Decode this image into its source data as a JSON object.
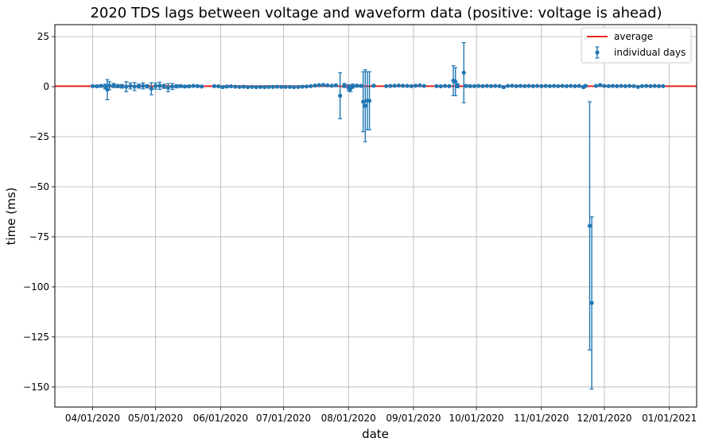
{
  "chart_data": {
    "type": "scatter",
    "title": "2020 TDS lags between voltage and waveform data (positive: voltage is ahead)",
    "xlabel": "date",
    "ylabel": "time (ms)",
    "xlim": [
      "2020-03-14",
      "2021-01-14"
    ],
    "ylim": [
      -160,
      31
    ],
    "x_ticks": [
      {
        "date": "2020-04-01",
        "label": "04/01/2020"
      },
      {
        "date": "2020-05-01",
        "label": "05/01/2020"
      },
      {
        "date": "2020-06-01",
        "label": "06/01/2020"
      },
      {
        "date": "2020-07-01",
        "label": "07/01/2020"
      },
      {
        "date": "2020-08-01",
        "label": "08/01/2020"
      },
      {
        "date": "2020-09-01",
        "label": "09/01/2020"
      },
      {
        "date": "2020-10-01",
        "label": "10/01/2020"
      },
      {
        "date": "2020-11-01",
        "label": "11/01/2020"
      },
      {
        "date": "2020-12-01",
        "label": "12/01/2020"
      },
      {
        "date": "2021-01-01",
        "label": "01/01/2021"
      }
    ],
    "y_ticks": [
      25,
      0,
      -25,
      -50,
      -75,
      -100,
      -125,
      -150
    ],
    "grid": true,
    "legend_position": "top-right",
    "colors": {
      "average": "#e8261e",
      "series": "#1f77b4",
      "grid": "#b0b0b0"
    },
    "average": {
      "name": "average",
      "y": 0.3
    },
    "series": [
      {
        "name": "individual days",
        "points": [
          {
            "x": "2020-04-01",
            "y": 0.3,
            "err": 0.4
          },
          {
            "x": "2020-04-03",
            "y": 0.2,
            "err": 0.5
          },
          {
            "x": "2020-04-05",
            "y": 0.4,
            "err": 0.6
          },
          {
            "x": "2020-04-07",
            "y": 0.1,
            "err": 1.2
          },
          {
            "x": "2020-04-08",
            "y": -1.5,
            "err": 5.0
          },
          {
            "x": "2020-04-09",
            "y": 0.5,
            "err": 2.0
          },
          {
            "x": "2020-04-11",
            "y": 0.6,
            "err": 1.0
          },
          {
            "x": "2020-04-13",
            "y": 0.3,
            "err": 0.8
          },
          {
            "x": "2020-04-15",
            "y": 0.2,
            "err": 0.9
          },
          {
            "x": "2020-04-17",
            "y": 0.0,
            "err": 2.5
          },
          {
            "x": "2020-04-19",
            "y": 0.4,
            "err": 1.5
          },
          {
            "x": "2020-04-21",
            "y": 0.1,
            "err": 2.0
          },
          {
            "x": "2020-04-23",
            "y": 0.3,
            "err": 1.0
          },
          {
            "x": "2020-04-25",
            "y": 0.4,
            "err": 1.5
          },
          {
            "x": "2020-04-27",
            "y": 0.2,
            "err": 0.8
          },
          {
            "x": "2020-04-29",
            "y": -1.0,
            "err": 3.0
          },
          {
            "x": "2020-05-01",
            "y": 0.3,
            "err": 1.5
          },
          {
            "x": "2020-05-03",
            "y": 0.5,
            "err": 1.8
          },
          {
            "x": "2020-05-05",
            "y": 0.2,
            "err": 1.0
          },
          {
            "x": "2020-05-07",
            "y": -0.5,
            "err": 2.0
          },
          {
            "x": "2020-05-09",
            "y": 0.1,
            "err": 1.5
          },
          {
            "x": "2020-05-11",
            "y": 0.2,
            "err": 0.8
          },
          {
            "x": "2020-05-13",
            "y": 0.3,
            "err": 0.6
          },
          {
            "x": "2020-05-15",
            "y": 0.1,
            "err": 0.5
          },
          {
            "x": "2020-05-17",
            "y": 0.2,
            "err": 0.5
          },
          {
            "x": "2020-05-19",
            "y": 0.4,
            "err": 0.4
          },
          {
            "x": "2020-05-21",
            "y": 0.3,
            "err": 0.5
          },
          {
            "x": "2020-05-23",
            "y": 0.1,
            "err": 0.4
          },
          {
            "x": "2020-05-29",
            "y": 0.3,
            "err": 0.4
          },
          {
            "x": "2020-05-31",
            "y": 0.2,
            "err": 0.4
          },
          {
            "x": "2020-06-02",
            "y": -0.2,
            "err": 0.5
          },
          {
            "x": "2020-06-04",
            "y": 0.1,
            "err": 0.5
          },
          {
            "x": "2020-06-06",
            "y": 0.2,
            "err": 0.4
          },
          {
            "x": "2020-06-08",
            "y": 0.0,
            "err": 0.4
          },
          {
            "x": "2020-06-10",
            "y": -0.1,
            "err": 0.3
          },
          {
            "x": "2020-06-12",
            "y": 0.0,
            "err": 0.3
          },
          {
            "x": "2020-06-14",
            "y": -0.2,
            "err": 0.3
          },
          {
            "x": "2020-06-16",
            "y": -0.1,
            "err": 0.3
          },
          {
            "x": "2020-06-18",
            "y": -0.2,
            "err": 0.3
          },
          {
            "x": "2020-06-20",
            "y": -0.1,
            "err": 0.3
          },
          {
            "x": "2020-06-22",
            "y": -0.2,
            "err": 0.3
          },
          {
            "x": "2020-06-24",
            "y": -0.1,
            "err": 0.3
          },
          {
            "x": "2020-06-26",
            "y": -0.1,
            "err": 0.3
          },
          {
            "x": "2020-06-28",
            "y": 0.0,
            "err": 0.3
          },
          {
            "x": "2020-06-30",
            "y": -0.1,
            "err": 0.3
          },
          {
            "x": "2020-07-02",
            "y": -0.1,
            "err": 0.3
          },
          {
            "x": "2020-07-04",
            "y": -0.1,
            "err": 0.3
          },
          {
            "x": "2020-07-06",
            "y": -0.2,
            "err": 0.3
          },
          {
            "x": "2020-07-08",
            "y": -0.1,
            "err": 0.3
          },
          {
            "x": "2020-07-10",
            "y": 0.0,
            "err": 0.3
          },
          {
            "x": "2020-07-12",
            "y": 0.1,
            "err": 0.3
          },
          {
            "x": "2020-07-14",
            "y": 0.3,
            "err": 0.3
          },
          {
            "x": "2020-07-16",
            "y": 0.6,
            "err": 0.3
          },
          {
            "x": "2020-07-18",
            "y": 0.8,
            "err": 0.3
          },
          {
            "x": "2020-07-20",
            "y": 0.9,
            "err": 0.3
          },
          {
            "x": "2020-07-22",
            "y": 0.7,
            "err": 0.3
          },
          {
            "x": "2020-07-24",
            "y": 0.5,
            "err": 0.4
          },
          {
            "x": "2020-07-26",
            "y": 0.7,
            "err": 0.5
          },
          {
            "x": "2020-07-28",
            "y": -4.5,
            "err": 11.5
          },
          {
            "x": "2020-07-30",
            "y": 0.6,
            "err": 1.0
          },
          {
            "x": "2020-08-01",
            "y": -0.5,
            "err": 1.5
          },
          {
            "x": "2020-08-02",
            "y": -1.0,
            "err": 1.5
          },
          {
            "x": "2020-08-03",
            "y": 0.3,
            "err": 1.0
          },
          {
            "x": "2020-08-05",
            "y": 0.5,
            "err": 0.6
          },
          {
            "x": "2020-08-07",
            "y": 0.4,
            "err": 0.5
          },
          {
            "x": "2020-08-08",
            "y": -7.5,
            "err": 15.0
          },
          {
            "x": "2020-08-09",
            "y": -9.5,
            "err": 18.0
          },
          {
            "x": "2020-08-10",
            "y": -7.0,
            "err": 14.5
          },
          {
            "x": "2020-08-11",
            "y": -7.0,
            "err": 14.5
          },
          {
            "x": "2020-08-13",
            "y": 0.5,
            "err": 0.5
          },
          {
            "x": "2020-08-19",
            "y": 0.3,
            "err": 0.4
          },
          {
            "x": "2020-08-21",
            "y": 0.4,
            "err": 0.4
          },
          {
            "x": "2020-08-23",
            "y": 0.5,
            "err": 0.4
          },
          {
            "x": "2020-08-25",
            "y": 0.6,
            "err": 0.4
          },
          {
            "x": "2020-08-27",
            "y": 0.5,
            "err": 0.4
          },
          {
            "x": "2020-08-29",
            "y": 0.4,
            "err": 0.4
          },
          {
            "x": "2020-08-31",
            "y": 0.3,
            "err": 0.4
          },
          {
            "x": "2020-09-02",
            "y": 0.5,
            "err": 0.4
          },
          {
            "x": "2020-09-04",
            "y": 0.7,
            "err": 0.4
          },
          {
            "x": "2020-09-06",
            "y": 0.4,
            "err": 0.4
          },
          {
            "x": "2020-09-12",
            "y": 0.3,
            "err": 0.4
          },
          {
            "x": "2020-09-14",
            "y": 0.2,
            "err": 0.4
          },
          {
            "x": "2020-09-16",
            "y": 0.4,
            "err": 0.4
          },
          {
            "x": "2020-09-18",
            "y": 0.3,
            "err": 0.4
          },
          {
            "x": "2020-09-20",
            "y": 3.0,
            "err": 7.5
          },
          {
            "x": "2020-09-21",
            "y": 2.5,
            "err": 7.0
          },
          {
            "x": "2020-09-22",
            "y": 0.5,
            "err": 1.0
          },
          {
            "x": "2020-09-25",
            "y": 7.0,
            "err": 15.0
          },
          {
            "x": "2020-09-26",
            "y": 0.4,
            "err": 0.5
          },
          {
            "x": "2020-09-28",
            "y": 0.3,
            "err": 0.4
          },
          {
            "x": "2020-09-30",
            "y": 0.3,
            "err": 0.4
          },
          {
            "x": "2020-10-02",
            "y": 0.4,
            "err": 0.4
          },
          {
            "x": "2020-10-04",
            "y": 0.3,
            "err": 0.4
          },
          {
            "x": "2020-10-06",
            "y": 0.4,
            "err": 0.4
          },
          {
            "x": "2020-10-08",
            "y": 0.3,
            "err": 0.4
          },
          {
            "x": "2020-10-10",
            "y": 0.4,
            "err": 0.4
          },
          {
            "x": "2020-10-12",
            "y": 0.3,
            "err": 0.4
          },
          {
            "x": "2020-10-14",
            "y": -0.2,
            "err": 0.5
          },
          {
            "x": "2020-10-16",
            "y": 0.4,
            "err": 0.4
          },
          {
            "x": "2020-10-18",
            "y": 0.5,
            "err": 0.4
          },
          {
            "x": "2020-10-20",
            "y": 0.3,
            "err": 0.4
          },
          {
            "x": "2020-10-22",
            "y": 0.4,
            "err": 0.4
          },
          {
            "x": "2020-10-24",
            "y": 0.3,
            "err": 0.4
          },
          {
            "x": "2020-10-26",
            "y": 0.4,
            "err": 0.4
          },
          {
            "x": "2020-10-28",
            "y": 0.3,
            "err": 0.4
          },
          {
            "x": "2020-10-30",
            "y": 0.4,
            "err": 0.4
          },
          {
            "x": "2020-11-01",
            "y": 0.3,
            "err": 0.4
          },
          {
            "x": "2020-11-03",
            "y": 0.4,
            "err": 0.4
          },
          {
            "x": "2020-11-05",
            "y": 0.3,
            "err": 0.4
          },
          {
            "x": "2020-11-07",
            "y": 0.4,
            "err": 0.4
          },
          {
            "x": "2020-11-09",
            "y": 0.3,
            "err": 0.4
          },
          {
            "x": "2020-11-11",
            "y": 0.4,
            "err": 0.4
          },
          {
            "x": "2020-11-13",
            "y": 0.3,
            "err": 0.4
          },
          {
            "x": "2020-11-15",
            "y": 0.4,
            "err": 0.4
          },
          {
            "x": "2020-11-17",
            "y": 0.3,
            "err": 0.4
          },
          {
            "x": "2020-11-19",
            "y": 0.4,
            "err": 0.4
          },
          {
            "x": "2020-11-21",
            "y": -0.2,
            "err": 0.5
          },
          {
            "x": "2020-11-22",
            "y": 0.4,
            "err": 0.5
          },
          {
            "x": "2020-11-24",
            "y": -69.5,
            "err": 62.0
          },
          {
            "x": "2020-11-25",
            "y": -108.0,
            "err": 43.0
          },
          {
            "x": "2020-11-27",
            "y": 0.4,
            "err": 0.4
          },
          {
            "x": "2020-11-29",
            "y": 0.8,
            "err": 0.6
          },
          {
            "x": "2020-12-01",
            "y": 0.4,
            "err": 0.4
          },
          {
            "x": "2020-12-03",
            "y": 0.3,
            "err": 0.4
          },
          {
            "x": "2020-12-05",
            "y": 0.4,
            "err": 0.4
          },
          {
            "x": "2020-12-07",
            "y": 0.3,
            "err": 0.4
          },
          {
            "x": "2020-12-09",
            "y": 0.4,
            "err": 0.4
          },
          {
            "x": "2020-12-11",
            "y": 0.3,
            "err": 0.4
          },
          {
            "x": "2020-12-13",
            "y": 0.4,
            "err": 0.4
          },
          {
            "x": "2020-12-15",
            "y": 0.3,
            "err": 0.4
          },
          {
            "x": "2020-12-17",
            "y": -0.1,
            "err": 0.4
          },
          {
            "x": "2020-12-19",
            "y": 0.3,
            "err": 0.4
          },
          {
            "x": "2020-12-21",
            "y": 0.4,
            "err": 0.4
          },
          {
            "x": "2020-12-23",
            "y": 0.3,
            "err": 0.4
          },
          {
            "x": "2020-12-25",
            "y": 0.4,
            "err": 0.4
          },
          {
            "x": "2020-12-27",
            "y": 0.3,
            "err": 0.4
          },
          {
            "x": "2020-12-29",
            "y": 0.3,
            "err": 0.4
          }
        ]
      }
    ]
  }
}
